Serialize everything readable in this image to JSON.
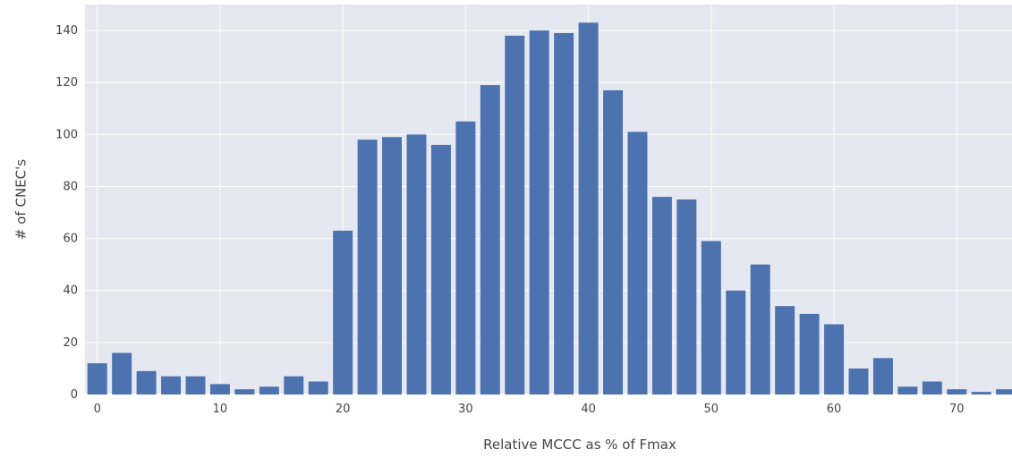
{
  "chart_data": {
    "type": "bar",
    "xlabel": "Relative MCCC as % of Fmax",
    "ylabel": "# of CNEC's",
    "xlim": [
      -1,
      74.5
    ],
    "ylim": [
      0,
      150
    ],
    "grid": true,
    "bar_width": 1.6,
    "x": [
      0,
      2,
      4,
      6,
      8,
      10,
      12,
      14,
      16,
      18,
      20,
      22,
      24,
      26,
      28,
      30,
      32,
      34,
      36,
      38,
      40,
      42,
      44,
      46,
      48,
      50,
      52,
      54,
      56,
      58,
      60,
      62,
      64,
      66,
      68,
      70,
      72,
      74
    ],
    "values": [
      12,
      16,
      9,
      7,
      7,
      4,
      2,
      3,
      7,
      5,
      63,
      98,
      99,
      100,
      96,
      105,
      119,
      138,
      140,
      139,
      143,
      117,
      101,
      76,
      75,
      59,
      40,
      50,
      34,
      31,
      27,
      10,
      14,
      3,
      5,
      2,
      1,
      2
    ],
    "x_ticks": [
      0,
      10,
      20,
      30,
      40,
      50,
      60,
      70
    ],
    "y_ticks": [
      0,
      20,
      40,
      60,
      80,
      100,
      120,
      140
    ],
    "colors": {
      "bar": "#4c72b0",
      "plot_bg": "#e5e8f0",
      "grid": "#ffffff"
    }
  }
}
